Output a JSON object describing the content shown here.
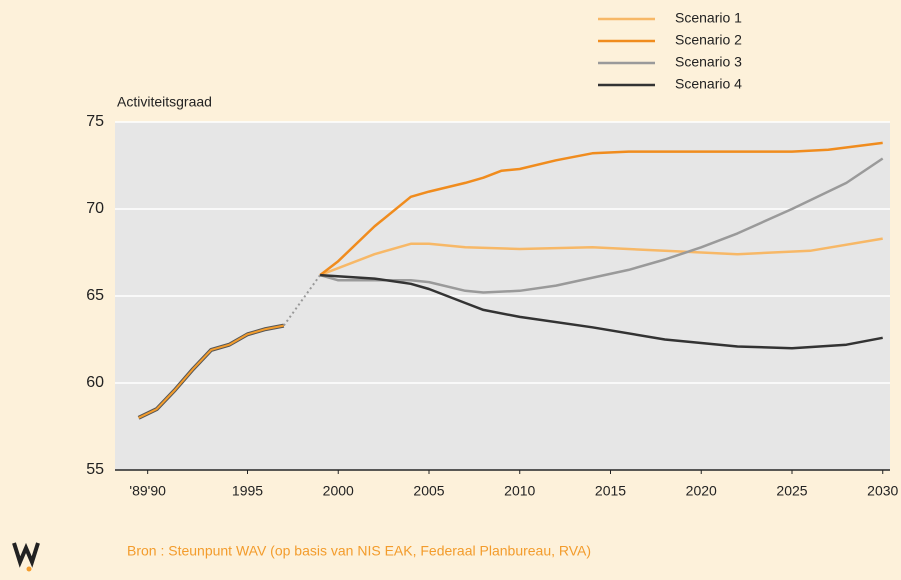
{
  "chart_data": {
    "type": "line",
    "y_label": "Activiteitsgraad",
    "source": "Bron : Steunpunt WAV (op basis van NIS EAK, Federaal Planbureau, RVA)",
    "xlim": [
      1987.7,
      2030.4
    ],
    "xticks": [
      {
        "value": 1989.5,
        "label": "'89'90"
      },
      1995,
      2000,
      2005,
      2010,
      2015,
      2020,
      2025,
      2030
    ],
    "ylim": [
      55,
      75
    ],
    "yticks": [
      55,
      60,
      65,
      70,
      75
    ],
    "grid": true,
    "legend": "top-right",
    "history": {
      "color": "#f39c2c",
      "x": [
        1989,
        1990,
        1991,
        1992,
        1993,
        1994,
        1995,
        1996,
        1997
      ],
      "values": [
        58.0,
        58.5,
        59.6,
        60.8,
        61.9,
        62.2,
        62.8,
        63.1,
        63.3
      ]
    },
    "series": [
      {
        "name": "Scenario 1",
        "color": "#f7b867",
        "x": [
          1999,
          2002,
          2004,
          2005,
          2007,
          2010,
          2014,
          2018,
          2022,
          2026,
          2030
        ],
        "values": [
          66.2,
          67.4,
          68.0,
          68.0,
          67.8,
          67.7,
          67.8,
          67.6,
          67.4,
          67.6,
          68.3
        ]
      },
      {
        "name": "Scenario 2",
        "color": "#f08c1e",
        "x": [
          1999,
          2000,
          2002,
          2004,
          2005,
          2007,
          2008,
          2009,
          2010,
          2012,
          2014,
          2016,
          2020,
          2025,
          2027,
          2030
        ],
        "values": [
          66.2,
          67.0,
          69.0,
          70.7,
          71.0,
          71.5,
          71.8,
          72.2,
          72.3,
          72.8,
          73.2,
          73.3,
          73.3,
          73.3,
          73.4,
          73.8
        ]
      },
      {
        "name": "Scenario 3",
        "color": "#9a9a9a",
        "x": [
          1999,
          2000,
          2004,
          2005,
          2007,
          2008,
          2010,
          2012,
          2016,
          2018,
          2020,
          2022,
          2025,
          2028,
          2030
        ],
        "values": [
          66.2,
          65.9,
          65.9,
          65.8,
          65.3,
          65.2,
          65.3,
          65.6,
          66.5,
          67.1,
          67.8,
          68.6,
          70.0,
          71.5,
          72.9
        ]
      },
      {
        "name": "Scenario 4",
        "color": "#333333",
        "x": [
          1999,
          2002,
          2004,
          2005,
          2007,
          2008,
          2010,
          2014,
          2018,
          2022,
          2025,
          2028,
          2030
        ],
        "values": [
          66.2,
          66.0,
          65.7,
          65.4,
          64.6,
          64.2,
          63.8,
          63.2,
          62.5,
          62.1,
          62.0,
          62.2,
          62.6
        ]
      }
    ]
  }
}
